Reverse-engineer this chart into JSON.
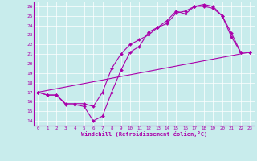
{
  "xlabel": "Windchill (Refroidissement éolien,°C)",
  "bg_color": "#c8ecec",
  "line_color": "#aa00aa",
  "xlim": [
    -0.5,
    23.5
  ],
  "ylim": [
    13.5,
    26.5
  ],
  "xticks": [
    0,
    1,
    2,
    3,
    4,
    5,
    6,
    7,
    8,
    9,
    10,
    11,
    12,
    13,
    14,
    15,
    16,
    17,
    18,
    19,
    20,
    21,
    22,
    23
  ],
  "yticks": [
    14,
    15,
    16,
    17,
    18,
    19,
    20,
    21,
    22,
    23,
    24,
    25,
    26
  ],
  "line1_x": [
    0,
    1,
    2,
    3,
    4,
    5,
    6,
    7,
    8,
    9,
    10,
    11,
    12,
    13,
    14,
    15,
    16,
    17,
    18,
    19,
    20,
    21,
    22,
    23
  ],
  "line1_y": [
    17.0,
    16.7,
    16.7,
    15.7,
    15.7,
    15.5,
    14.0,
    14.5,
    17.0,
    19.3,
    21.2,
    21.8,
    23.3,
    23.8,
    24.5,
    25.5,
    25.2,
    26.0,
    26.0,
    25.8,
    25.0,
    22.8,
    21.2,
    21.2
  ],
  "line2_x": [
    0,
    1,
    2,
    3,
    4,
    5,
    6,
    7,
    8,
    9,
    10,
    11,
    12,
    13,
    14,
    15,
    16,
    17,
    18,
    19,
    20,
    21,
    22,
    23
  ],
  "line2_y": [
    17.0,
    16.7,
    16.7,
    15.8,
    15.8,
    15.8,
    15.5,
    17.0,
    19.5,
    21.0,
    22.0,
    22.5,
    23.0,
    23.8,
    24.2,
    25.3,
    25.5,
    26.0,
    26.2,
    26.0,
    25.0,
    23.2,
    21.2,
    21.2
  ],
  "line3_x": [
    0,
    23
  ],
  "line3_y": [
    17.0,
    21.2
  ]
}
